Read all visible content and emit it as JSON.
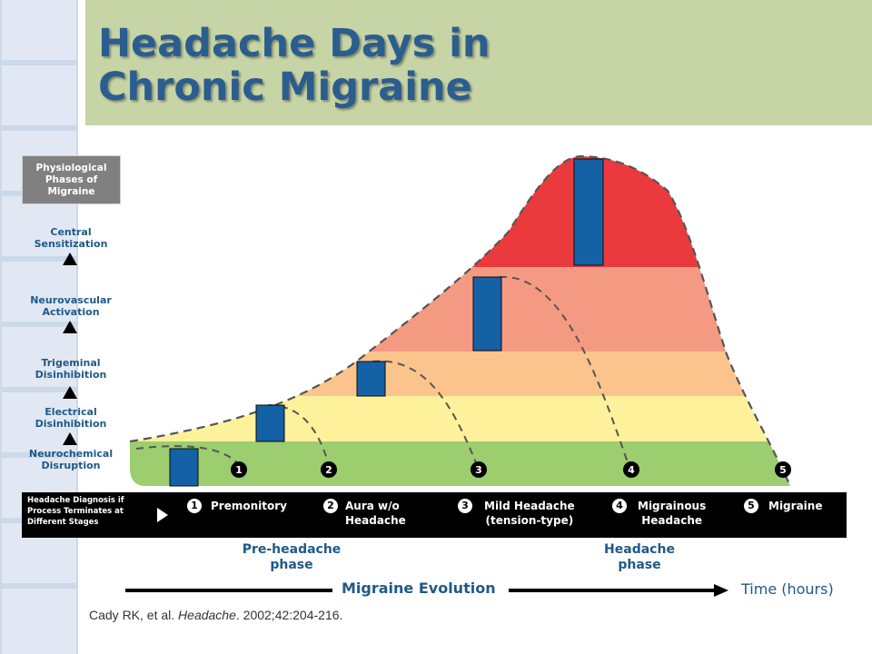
{
  "title": "Headache Days in\nChronic Migraine",
  "colors": {
    "green": "#9ccd6f",
    "yellow": "#fdf29b",
    "peach": "#fcc48d",
    "salmon": "#f59a82",
    "red": "#eb3a3e",
    "bar_blue": "#1461a6",
    "accent_text": "#1f5a86"
  },
  "sidebar": {
    "header": "Physiological\nPhases of\nMigraine",
    "phases": [
      "Central\nSensitization",
      "Neurovascular\nActivation",
      "Trigeminal\nDisinhibition",
      "Electrical\nDisinhibition",
      "Neurochemical\nDisruption"
    ]
  },
  "curve_markers": [
    "1",
    "2",
    "3",
    "4",
    "5"
  ],
  "diagnosis_band": {
    "note": "Headache Diagnosis if\nProcess Terminates at\nDifferent Stages",
    "stages": [
      {
        "num": "1",
        "label": "Premonitory"
      },
      {
        "num": "2",
        "label": "Aura w/o\nHeadache"
      },
      {
        "num": "3",
        "label": "Mild Headache\n(tension-type)"
      },
      {
        "num": "4",
        "label": "Migrainous\nHeadache"
      },
      {
        "num": "5",
        "label": "Migraine"
      }
    ]
  },
  "phases": {
    "pre": "Pre-headache\nphase",
    "headache": "Headache\nphase"
  },
  "axis": {
    "evolution": "Migraine Evolution",
    "time": "Time (hours)"
  },
  "citation": {
    "authors": "Cady RK, et al. ",
    "journal": "Headache",
    "rest": ". 2002;42:204-216."
  }
}
